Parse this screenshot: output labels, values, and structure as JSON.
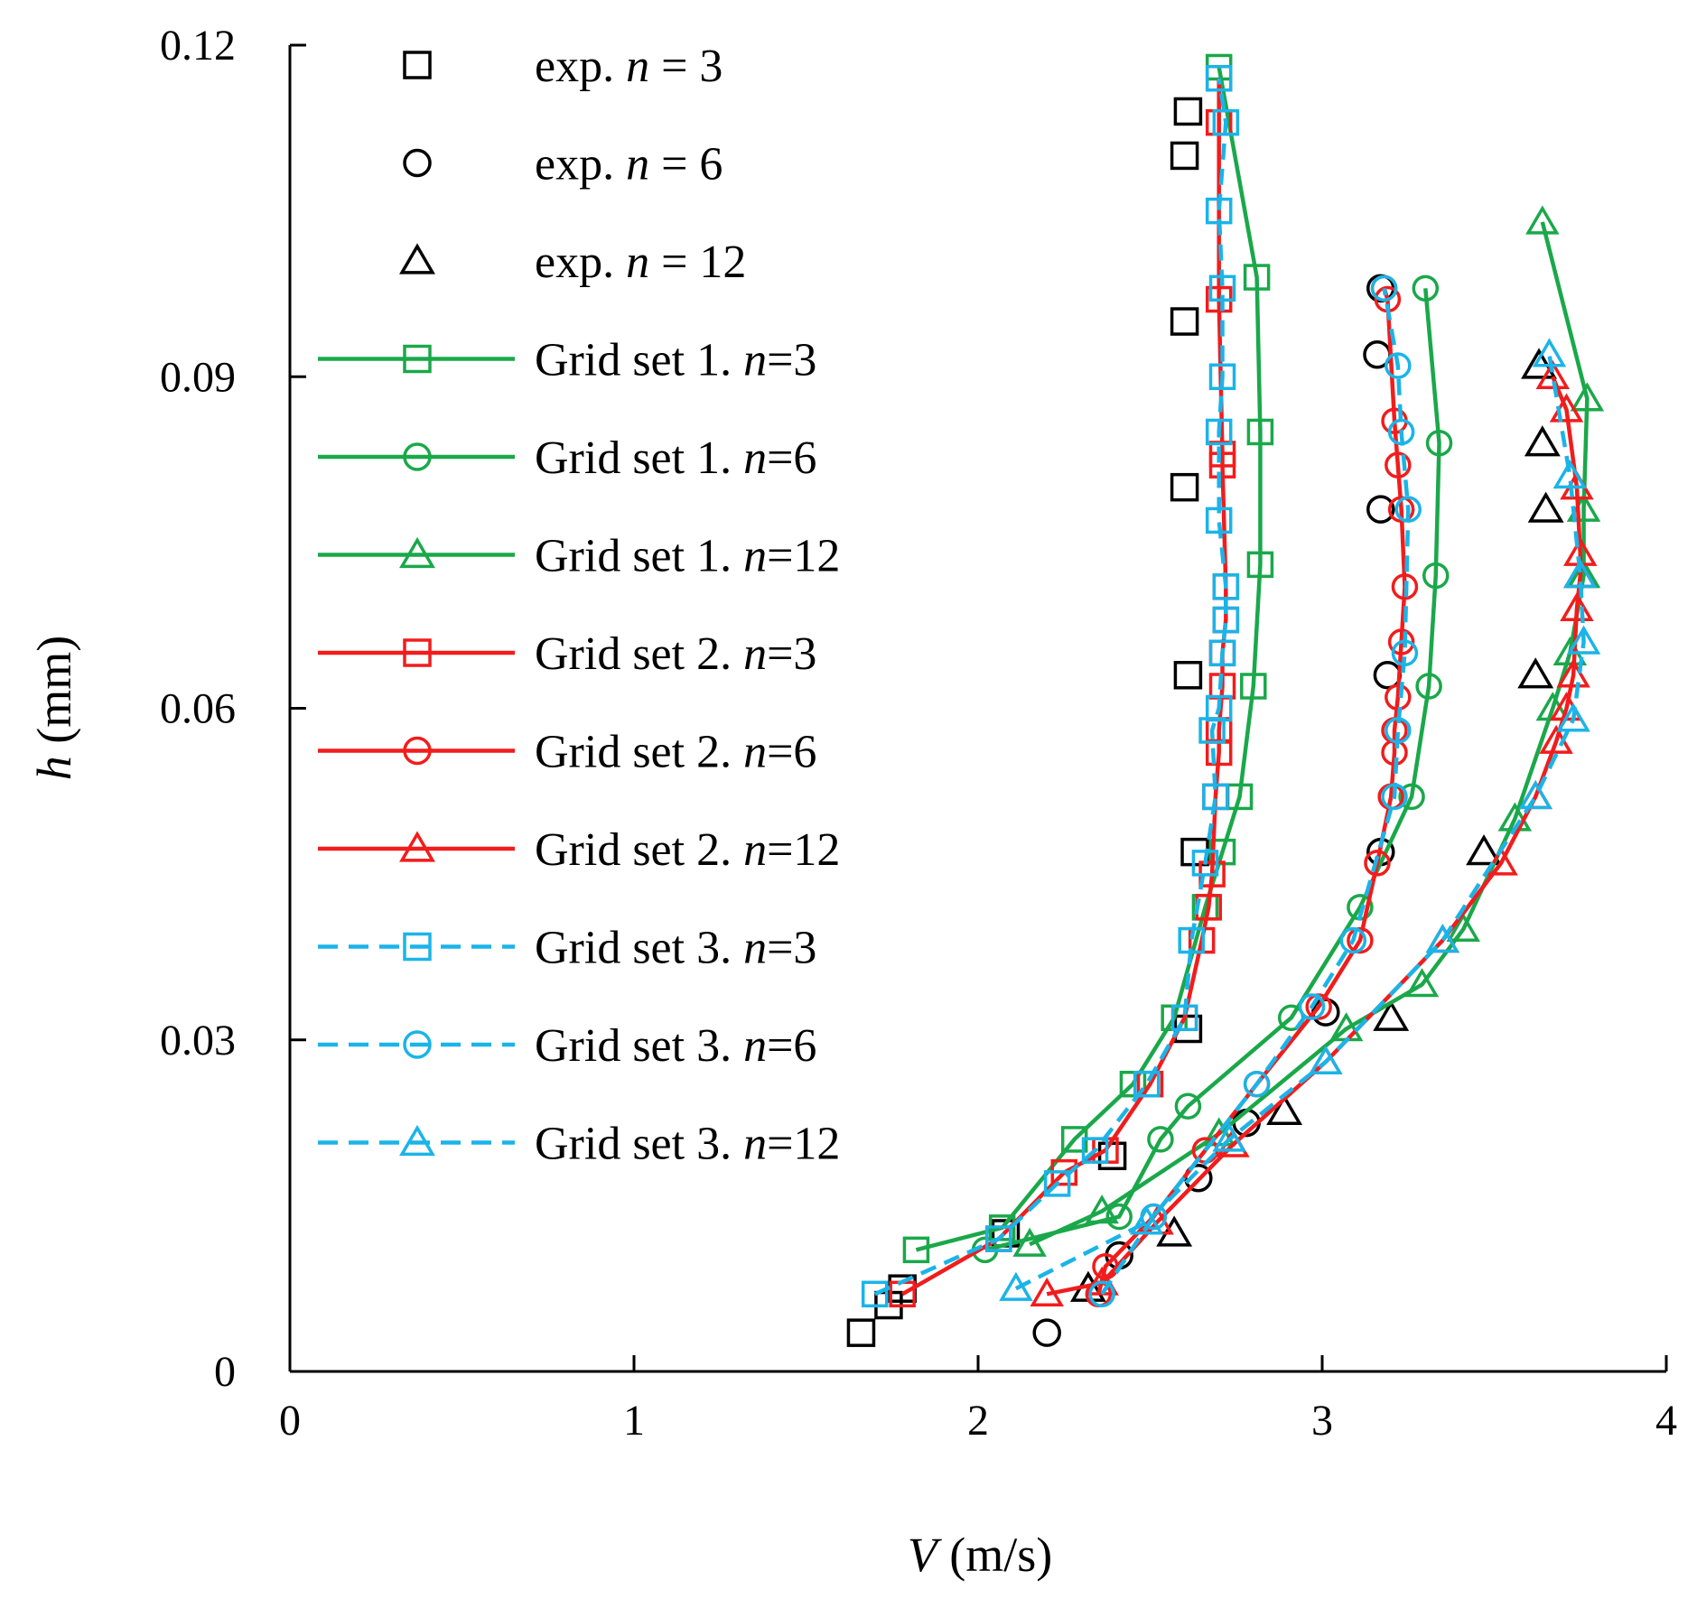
{
  "chart_data": {
    "type": "scatter",
    "title": "",
    "xlabel_symbol": "V",
    "xlabel_unit": " (m/s)",
    "ylabel_symbol": "h",
    "ylabel_unit": " (mm)",
    "xlim": [
      0,
      4
    ],
    "ylim": [
      0,
      0.12
    ],
    "x_ticks": [
      0,
      1,
      2,
      3,
      4
    ],
    "x_tick_labels": [
      "0",
      "1",
      "2",
      "3",
      "4"
    ],
    "y_ticks": [
      0,
      0.03,
      0.06,
      0.09,
      0.12
    ],
    "y_tick_labels": [
      "0",
      "0.03",
      "0.06",
      "0.09",
      "0.12"
    ],
    "grid": false,
    "legend_position": "top-left",
    "colors": {
      "exp": "#000000",
      "grid1": "#1aa84a",
      "grid2": "#f21c1c",
      "grid3": "#1ab4e8"
    },
    "series": [
      {
        "name": "exp. n = 3",
        "label_prefix": "exp. ",
        "label_n": "n",
        "label_suffix": " = 3",
        "group": "exp",
        "marker": "square",
        "line": "none",
        "x": [
          1.66,
          1.74,
          1.78,
          2.08,
          2.39,
          2.61,
          2.63,
          2.61,
          2.6,
          2.6,
          2.6,
          2.61
        ],
        "y": [
          0.0035,
          0.006,
          0.0075,
          0.0125,
          0.0195,
          0.031,
          0.047,
          0.063,
          0.08,
          0.095,
          0.11,
          0.114
        ]
      },
      {
        "name": "exp. n = 6",
        "label_prefix": "exp. ",
        "label_n": "n",
        "label_suffix": " = 6",
        "group": "exp",
        "marker": "circle",
        "line": "none",
        "x": [
          2.2,
          2.41,
          2.64,
          2.78,
          3.01,
          3.17,
          3.19,
          3.17,
          3.16,
          3.17
        ],
        "y": [
          0.0035,
          0.0105,
          0.0175,
          0.0225,
          0.0325,
          0.047,
          0.063,
          0.078,
          0.092,
          0.098
        ]
      },
      {
        "name": "exp. n = 12",
        "label_prefix": "exp. ",
        "label_n": "n",
        "label_suffix": " = 12",
        "group": "exp",
        "marker": "triangle",
        "line": "none",
        "x": [
          2.32,
          2.57,
          2.89,
          3.2,
          3.47,
          3.62,
          3.65,
          3.64,
          3.63
        ],
        "y": [
          0.0075,
          0.0125,
          0.0235,
          0.032,
          0.047,
          0.063,
          0.078,
          0.084,
          0.091
        ]
      },
      {
        "name": "Grid set 1. n=3",
        "label_prefix": "Grid set 1. ",
        "label_n": "n",
        "label_suffix": "=3",
        "group": "grid1",
        "marker": "square",
        "line": "solid",
        "x": [
          1.82,
          2.07,
          2.28,
          2.45,
          2.57,
          2.66,
          2.71,
          2.76,
          2.8,
          2.82,
          2.82,
          2.81,
          2.7
        ],
        "y": [
          0.011,
          0.013,
          0.021,
          0.026,
          0.032,
          0.042,
          0.047,
          0.052,
          0.062,
          0.073,
          0.085,
          0.099,
          0.118
        ]
      },
      {
        "name": "Grid set 1. n=6",
        "label_prefix": "Grid set 1. ",
        "label_n": "n",
        "label_suffix": "=6",
        "group": "grid1",
        "marker": "circle",
        "line": "solid",
        "x": [
          2.02,
          2.41,
          2.53,
          2.61,
          2.91,
          3.11,
          3.26,
          3.31,
          3.33,
          3.34,
          3.3
        ],
        "y": [
          0.011,
          0.014,
          0.021,
          0.024,
          0.032,
          0.042,
          0.052,
          0.062,
          0.072,
          0.084,
          0.098
        ]
      },
      {
        "name": "Grid set 1. n=12",
        "label_prefix": "Grid set 1. ",
        "label_n": "n",
        "label_suffix": "=12",
        "group": "grid1",
        "marker": "triangle",
        "line": "solid",
        "x": [
          2.15,
          2.36,
          2.7,
          3.07,
          3.29,
          3.41,
          3.56,
          3.67,
          3.72,
          3.76,
          3.76,
          3.77,
          3.64
        ],
        "y": [
          0.0115,
          0.0145,
          0.0215,
          0.031,
          0.035,
          0.04,
          0.05,
          0.06,
          0.065,
          0.072,
          0.078,
          0.088,
          0.104
        ]
      },
      {
        "name": "Grid set 2. n=3",
        "label_prefix": "Grid set 2. ",
        "label_n": "n",
        "label_suffix": "=3",
        "group": "grid2",
        "marker": "square",
        "line": "solid",
        "x": [
          1.78,
          2.06,
          2.25,
          2.37,
          2.5,
          2.6,
          2.65,
          2.67,
          2.68,
          2.69,
          2.7,
          2.7,
          2.71,
          2.71,
          2.72,
          2.72,
          2.71,
          2.71,
          2.7,
          2.7,
          2.7
        ],
        "y": [
          0.007,
          0.012,
          0.018,
          0.02,
          0.026,
          0.032,
          0.039,
          0.042,
          0.045,
          0.052,
          0.056,
          0.058,
          0.062,
          0.065,
          0.068,
          0.071,
          0.082,
          0.083,
          0.097,
          0.113,
          0.117
        ]
      },
      {
        "name": "Grid set 2. n=6",
        "label_prefix": "Grid set 2. ",
        "label_n": "n",
        "label_suffix": "=6",
        "group": "grid2",
        "marker": "circle",
        "line": "solid",
        "x": [
          2.35,
          2.37,
          2.51,
          2.66,
          2.81,
          2.99,
          3.11,
          3.16,
          3.2,
          3.21,
          3.21,
          3.22,
          3.23,
          3.24,
          3.23,
          3.22,
          3.21,
          3.19,
          3.18
        ],
        "y": [
          0.007,
          0.0095,
          0.014,
          0.02,
          0.026,
          0.033,
          0.039,
          0.046,
          0.052,
          0.056,
          0.058,
          0.061,
          0.066,
          0.071,
          0.078,
          0.082,
          0.086,
          0.097,
          0.098
        ]
      },
      {
        "name": "Grid set 2. n=12",
        "label_prefix": "Grid set 2. ",
        "label_n": "n",
        "label_suffix": "=12",
        "group": "grid2",
        "marker": "triangle",
        "line": "solid",
        "x": [
          2.2,
          2.36,
          2.52,
          2.74,
          3.01,
          3.35,
          3.52,
          3.62,
          3.68,
          3.71,
          3.73,
          3.74,
          3.75,
          3.75,
          3.74,
          3.71,
          3.67
        ],
        "y": [
          0.007,
          0.008,
          0.0135,
          0.0205,
          0.028,
          0.039,
          0.046,
          0.052,
          0.057,
          0.06,
          0.063,
          0.069,
          0.072,
          0.074,
          0.08,
          0.087,
          0.09
        ]
      },
      {
        "name": "Grid set 3. n=3",
        "label_prefix": "Grid set 3. ",
        "label_n": "n",
        "label_suffix": "=3",
        "group": "grid3",
        "marker": "square",
        "line": "dashed",
        "x": [
          1.7,
          2.06,
          2.23,
          2.34,
          2.49,
          2.6,
          2.62,
          2.66,
          2.69,
          2.68,
          2.7,
          2.71,
          2.72,
          2.72,
          2.7,
          2.7,
          2.71,
          2.71,
          2.7,
          2.72,
          2.7
        ],
        "y": [
          0.007,
          0.012,
          0.017,
          0.02,
          0.026,
          0.032,
          0.039,
          0.046,
          0.052,
          0.058,
          0.06,
          0.065,
          0.068,
          0.071,
          0.077,
          0.085,
          0.09,
          0.098,
          0.105,
          0.113,
          0.117
        ]
      },
      {
        "name": "Grid set 3. n=6",
        "label_prefix": "Grid set 3. ",
        "label_n": "n",
        "label_suffix": "=6",
        "group": "grid3",
        "marker": "circle",
        "line": "dashed",
        "x": [
          2.36,
          2.51,
          2.81,
          2.97,
          3.09,
          3.21,
          3.22,
          3.24,
          3.25,
          3.23,
          3.22,
          3.18
        ],
        "y": [
          0.007,
          0.014,
          0.026,
          0.033,
          0.039,
          0.052,
          0.058,
          0.065,
          0.078,
          0.085,
          0.091,
          0.098
        ]
      },
      {
        "name": "Grid set 3. n=12",
        "label_prefix": "Grid set 3. ",
        "label_n": "n",
        "label_suffix": "=12",
        "group": "grid3",
        "marker": "triangle",
        "line": "dashed",
        "x": [
          2.11,
          2.49,
          2.73,
          3.01,
          3.35,
          3.62,
          3.73,
          3.76,
          3.75,
          3.72,
          3.66
        ],
        "y": [
          0.0075,
          0.0135,
          0.021,
          0.028,
          0.039,
          0.052,
          0.059,
          0.066,
          0.072,
          0.081,
          0.092
        ]
      }
    ]
  }
}
